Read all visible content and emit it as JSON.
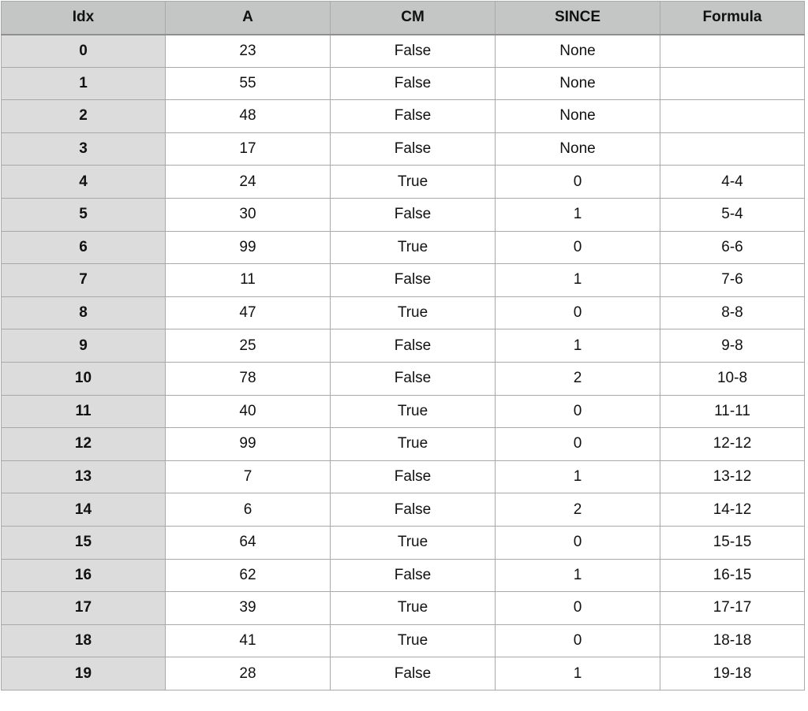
{
  "table": {
    "headers": [
      "Idx",
      "A",
      "CM",
      "SINCE",
      "Formula"
    ],
    "rows": [
      [
        "0",
        "23",
        "False",
        "None",
        ""
      ],
      [
        "1",
        "55",
        "False",
        "None",
        ""
      ],
      [
        "2",
        "48",
        "False",
        "None",
        ""
      ],
      [
        "3",
        "17",
        "False",
        "None",
        ""
      ],
      [
        "4",
        "24",
        "True",
        "0",
        "4-4"
      ],
      [
        "5",
        "30",
        "False",
        "1",
        "5-4"
      ],
      [
        "6",
        "99",
        "True",
        "0",
        "6-6"
      ],
      [
        "7",
        "11",
        "False",
        "1",
        "7-6"
      ],
      [
        "8",
        "47",
        "True",
        "0",
        "8-8"
      ],
      [
        "9",
        "25",
        "False",
        "1",
        "9-8"
      ],
      [
        "10",
        "78",
        "False",
        "2",
        "10-8"
      ],
      [
        "11",
        "40",
        "True",
        "0",
        "11-11"
      ],
      [
        "12",
        "99",
        "True",
        "0",
        "12-12"
      ],
      [
        "13",
        "7",
        "False",
        "1",
        "13-12"
      ],
      [
        "14",
        "6",
        "False",
        "2",
        "14-12"
      ],
      [
        "15",
        "64",
        "True",
        "0",
        "15-15"
      ],
      [
        "16",
        "62",
        "False",
        "1",
        "16-15"
      ],
      [
        "17",
        "39",
        "True",
        "0",
        "17-17"
      ],
      [
        "18",
        "41",
        "True",
        "0",
        "18-18"
      ],
      [
        "19",
        "28",
        "False",
        "1",
        "19-18"
      ]
    ]
  }
}
